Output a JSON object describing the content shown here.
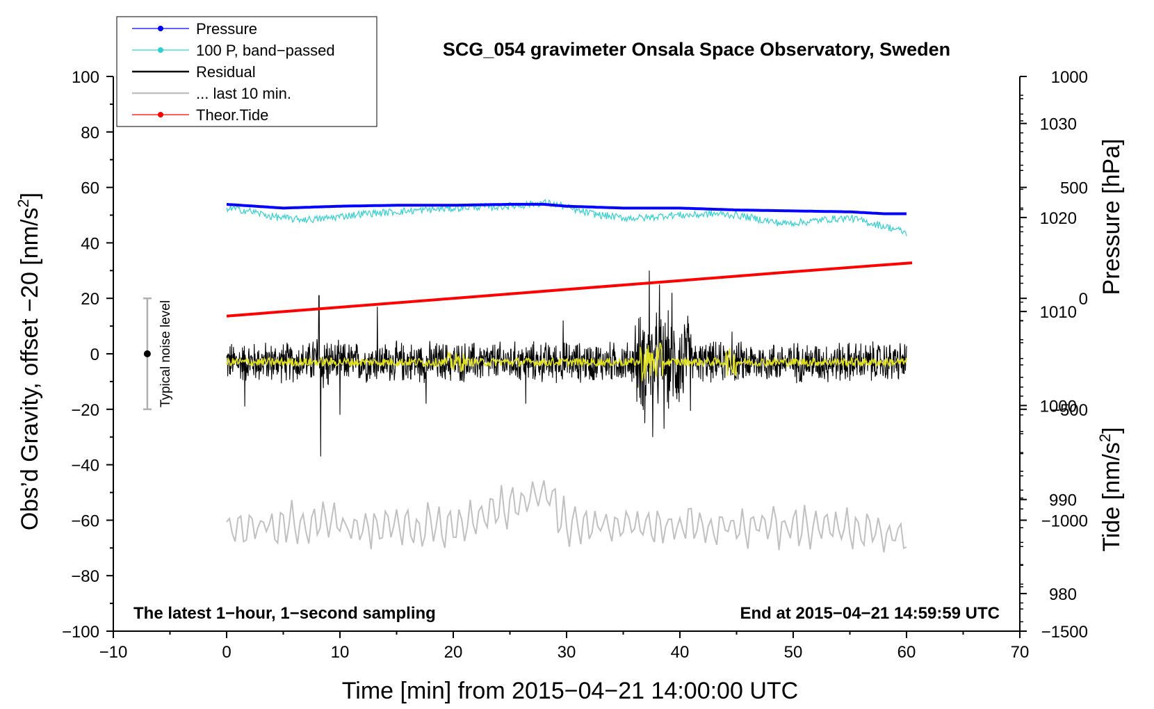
{
  "chart_data": {
    "type": "line",
    "title": "SCG_054 gravimeter Onsala Space Observatory, Sweden",
    "xlabel": "Time [min] from 2015−04−21 14:00:00 UTC",
    "ylabel_left_main": "Obs’d Gravity, offset −20 [nm/s",
    "ylabel_left_sup": "2",
    "ylabel_left_end": "]",
    "ylabel_right_pressure": "Pressure [hPa]",
    "ylabel_right_tide_main": "Tide [nm/s",
    "ylabel_right_tide_sup": "2",
    "ylabel_right_tide_end": "]",
    "xlim": [
      -10,
      70
    ],
    "ylim": [
      -100,
      100
    ],
    "x_ticks": [
      {
        "value": -10,
        "label": "−10"
      },
      {
        "value": 0,
        "label": "0"
      },
      {
        "value": 10,
        "label": "10"
      },
      {
        "value": 20,
        "label": "20"
      },
      {
        "value": 30,
        "label": "30"
      },
      {
        "value": 40,
        "label": "40"
      },
      {
        "value": 50,
        "label": "50"
      },
      {
        "value": 60,
        "label": "60"
      },
      {
        "value": 70,
        "label": "70"
      }
    ],
    "y_ticks": [
      {
        "value": 100,
        "label": "100"
      },
      {
        "value": 80,
        "label": "80"
      },
      {
        "value": 60,
        "label": "60"
      },
      {
        "value": 40,
        "label": "40"
      },
      {
        "value": 20,
        "label": "20"
      },
      {
        "value": 0,
        "label": "0"
      },
      {
        "value": -20,
        "label": "−20"
      },
      {
        "value": -40,
        "label": "−40"
      },
      {
        "value": -60,
        "label": "−60"
      },
      {
        "value": -80,
        "label": "−80"
      },
      {
        "value": -100,
        "label": "−100"
      }
    ],
    "pressure_axis": {
      "ylim_hPa": [
        976,
        1035
      ],
      "ticks": [
        {
          "value": 1030,
          "label": "1030"
        },
        {
          "value": 1020,
          "label": "1020"
        },
        {
          "value": 1010,
          "label": "1010"
        },
        {
          "value": 1000,
          "label": "1000"
        },
        {
          "value": 990,
          "label": "990"
        },
        {
          "value": 980,
          "label": "980"
        }
      ]
    },
    "tide_axis": {
      "ylim_nm_s2": [
        -1500,
        1000
      ],
      "ticks": [
        {
          "value": 1000,
          "label": "1000"
        },
        {
          "value": 500,
          "label": "500"
        },
        {
          "value": 0,
          "label": "0"
        },
        {
          "value": -500,
          "label": "−500"
        },
        {
          "value": -1000,
          "label": "−1000"
        },
        {
          "value": -1500,
          "label": "−1500"
        }
      ]
    },
    "legend_position": "top-left",
    "legend": [
      {
        "label": "Pressure",
        "color": "#0000ff",
        "marker": true
      },
      {
        "label": "100 P, band−passed",
        "color": "#30d0d0",
        "marker": true
      },
      {
        "label": "Residual",
        "color": "#000000",
        "marker": false
      },
      {
        "label": "... last 10 min.",
        "color": "#c0c0c0",
        "marker": false
      },
      {
        "label": "Theor.Tide",
        "color": "#ff0000",
        "marker": true
      }
    ],
    "series": [
      {
        "name": "Pressure",
        "axis": "pressure",
        "color": "#0000ff",
        "x": [
          0,
          5,
          10,
          15,
          20,
          25,
          28,
          30,
          35,
          40,
          45,
          50,
          55,
          58,
          60
        ],
        "values": [
          1021.4,
          1021.0,
          1021.2,
          1021.3,
          1021.3,
          1021.4,
          1021.4,
          1021.2,
          1021.0,
          1021.0,
          1020.8,
          1020.7,
          1020.6,
          1020.4,
          1020.4
        ]
      },
      {
        "name": "100 P, band−passed",
        "axis": "left",
        "color": "#30d0d0",
        "x": [
          0,
          2,
          4,
          6,
          8,
          10,
          12,
          14,
          16,
          18,
          20,
          22,
          24,
          26,
          28,
          29.5,
          31,
          33,
          35,
          37,
          39,
          41,
          43,
          45,
          47,
          49,
          51,
          53,
          55,
          57,
          59,
          60
        ],
        "values": [
          52.5,
          51.5,
          49.5,
          48.5,
          48.5,
          49.5,
          50.5,
          51.0,
          51.5,
          52.0,
          52.5,
          53.0,
          53.0,
          53.5,
          54.5,
          53.5,
          51.5,
          50.0,
          49.0,
          49.0,
          50.0,
          50.0,
          50.5,
          50.0,
          48.5,
          47.0,
          47.5,
          48.5,
          49.0,
          47.0,
          45.0,
          43.5
        ]
      },
      {
        "name": "Residual",
        "axis": "left",
        "color": "#000000",
        "x": [
          0,
          8,
          8.3,
          10,
          17.5,
          20,
          26.5,
          30,
          37.3,
          40,
          44.6,
          50,
          55,
          60
        ],
        "values": [
          -3,
          -3,
          -37,
          -3,
          -3,
          -3,
          -3,
          -3,
          30,
          -3,
          -3,
          -3,
          -3,
          -3
        ],
        "noise_amplitude_nm_s2": 7
      },
      {
        "name": "... last 10 min.",
        "axis": "left",
        "color": "#c0c0c0",
        "x": [
          0,
          10,
          20,
          28.5,
          30,
          40,
          50,
          60
        ],
        "values": [
          -62,
          -62,
          -62,
          -50,
          -62,
          -62,
          -62,
          -65
        ],
        "noise_amplitude_nm_s2": 6
      },
      {
        "name": "Theor.Tide",
        "axis": "tide",
        "color": "#ff0000",
        "x": [
          0,
          10,
          20,
          30,
          40,
          50,
          60.5
        ],
        "values": [
          -80,
          -40,
          0,
          40,
          80,
          120,
          160
        ]
      },
      {
        "name": "smoothed residual",
        "axis": "left",
        "color": "#e0e020",
        "x": [
          0,
          20,
          37,
          60
        ],
        "values": [
          -3,
          -3,
          -3,
          -3
        ],
        "noise_amplitude_nm_s2": 1.5
      }
    ],
    "noise_bar": {
      "x": -7,
      "center": 0,
      "low": -20,
      "high": 20,
      "label": "Typical noise level"
    },
    "annotations": {
      "bottom_left": "The latest 1−hour, 1−second sampling",
      "bottom_right": "End at 2015−04−21 14:59:59 UTC"
    }
  }
}
